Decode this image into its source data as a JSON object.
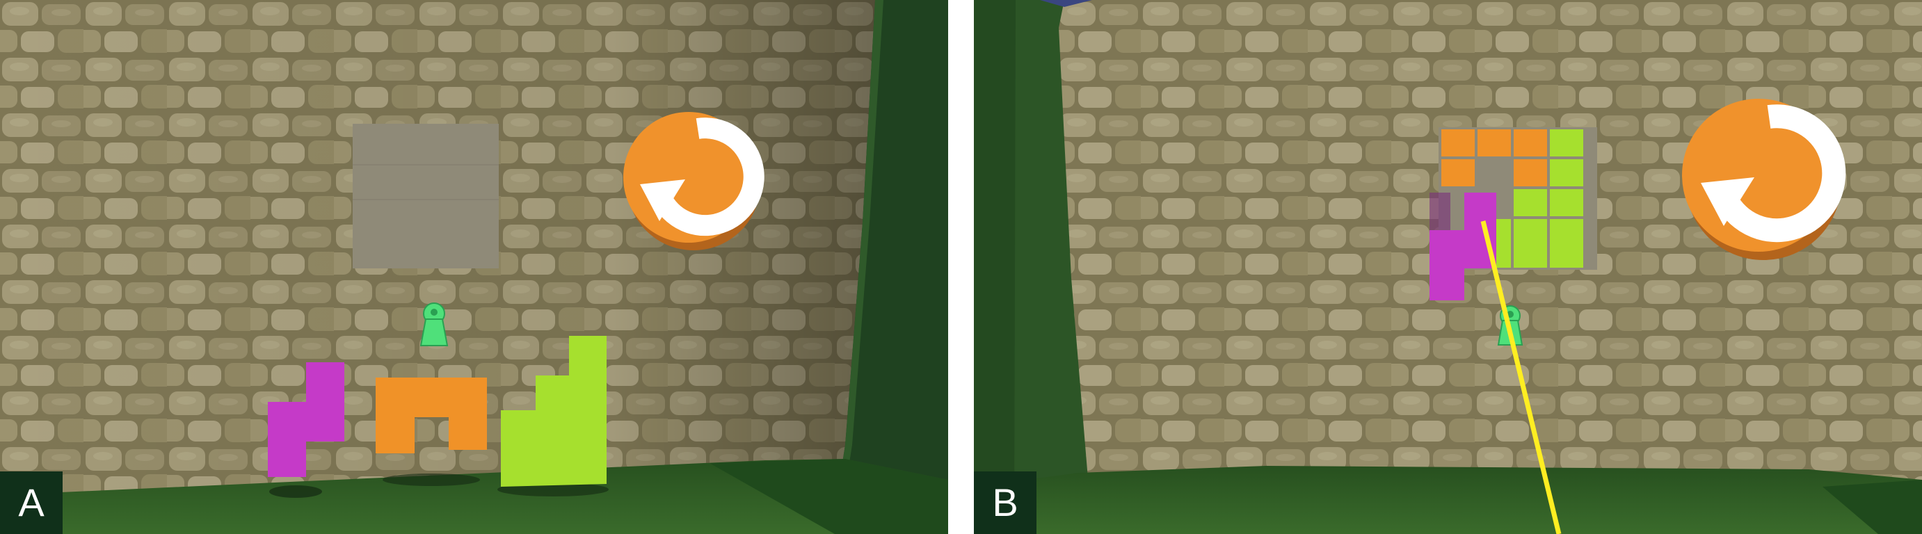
{
  "panels": [
    {
      "id": "A",
      "label": "A"
    },
    {
      "id": "B",
      "label": "B"
    }
  ],
  "icons": {
    "reset": "reset-arrow-icon",
    "keyhole": "keyhole-icon"
  },
  "colors": {
    "stone_wall": "#8c8460",
    "grass": "#2f5a24",
    "dark_grass": "#1c3d1b",
    "reset_button": "#f0922c",
    "board_empty": "#8f8a78",
    "piece_magenta": "#c53ac8",
    "piece_orange": "#f09228",
    "piece_green": "#a6e02e",
    "key_green": "#4fe07a",
    "pointer_ray": "#ffee22",
    "label_bg": "#10301a",
    "label_text": "#ffffff"
  }
}
